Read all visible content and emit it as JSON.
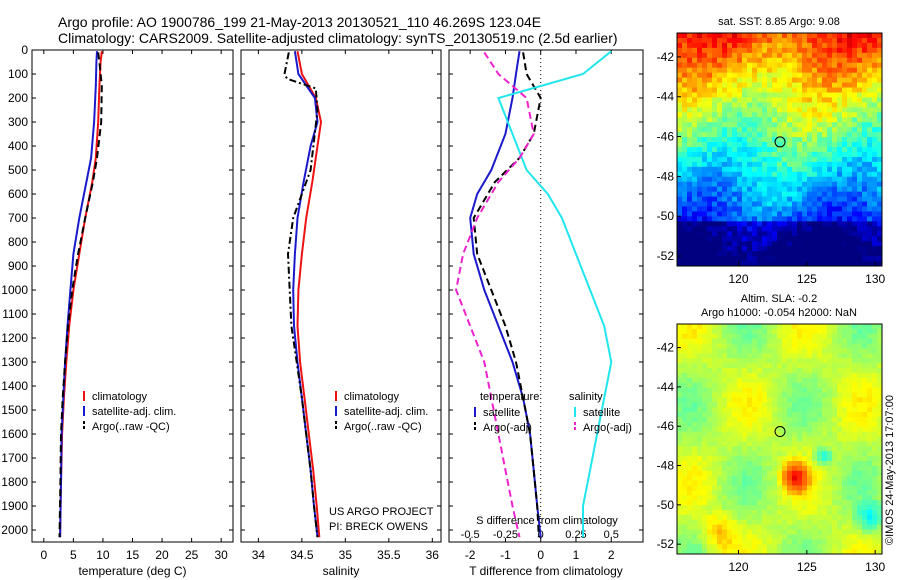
{
  "header": {
    "line1": "Argo profile: AO 1900786_199 21-May-2013 20130521_110 46.269S 123.04E",
    "line2": "Climatology: CARS2009. Satellite-adjusted climatology: synTS_20130519.nc (2.5d earlier)"
  },
  "colors": {
    "climatology": "#ee1111",
    "satellite": "#1a1acc",
    "argo": "#000000",
    "salinity_satellite": "#22e6ee",
    "salinity_argo": "#ee22cc"
  },
  "chart_data": [
    {
      "type": "line",
      "panel": "temperature",
      "xlabel": "temperature (deg C)",
      "xticks": [
        "0",
        "5",
        "10",
        "15",
        "20",
        "25",
        "30"
      ],
      "xlim": [
        -2,
        32
      ],
      "ylim": [
        2050,
        0
      ],
      "yticks": [
        "0",
        "100",
        "200",
        "300",
        "400",
        "500",
        "600",
        "700",
        "800",
        "900",
        "1000",
        "1100",
        "1200",
        "1300",
        "1400",
        "1500",
        "1600",
        "1700",
        "1800",
        "1900",
        "2000"
      ],
      "legend": [
        "climatology",
        "satellite-adj. clim.",
        "Argo(..raw -QC)"
      ],
      "series": [
        {
          "name": "climatology",
          "style": "solid",
          "color_key": "climatology",
          "x": [
            9.8,
            9.6,
            9.4,
            9.2,
            8.8,
            8.2,
            7.0,
            6.0,
            5.0,
            4.3,
            3.8,
            3.4,
            3.1,
            2.9,
            2.8,
            2.75
          ],
          "y": [
            5,
            50,
            150,
            300,
            450,
            550,
            700,
            850,
            1000,
            1150,
            1300,
            1450,
            1600,
            1800,
            1950,
            2030
          ]
        },
        {
          "name": "satellite-adj. clim.",
          "style": "solid",
          "color_key": "satellite",
          "x": [
            9.0,
            8.9,
            8.8,
            8.5,
            8.0,
            7.2,
            6.0,
            5.0,
            4.5,
            4.0,
            3.6,
            3.3,
            3.0,
            2.9,
            2.8,
            2.75
          ],
          "y": [
            5,
            50,
            150,
            300,
            450,
            550,
            700,
            850,
            1000,
            1150,
            1300,
            1450,
            1600,
            1800,
            1950,
            2030
          ]
        },
        {
          "name": "Argo(..raw -QC)",
          "style": "dash",
          "color_key": "argo",
          "x": [
            9.2,
            9.4,
            9.8,
            9.7,
            9.0,
            8.3,
            7.0,
            5.8,
            4.8,
            4.1,
            3.6,
            3.2,
            2.9,
            2.8,
            2.7,
            2.65
          ],
          "y": [
            10,
            50,
            150,
            300,
            450,
            550,
            700,
            850,
            1000,
            1150,
            1300,
            1450,
            1600,
            1800,
            1950,
            2030
          ]
        }
      ]
    },
    {
      "type": "line",
      "panel": "salinity",
      "xlabel": "salinity",
      "xticks": [
        "34",
        "34.5",
        "35",
        "35.5",
        "36"
      ],
      "xlim": [
        33.8,
        36.1
      ],
      "ylim": [
        2050,
        0
      ],
      "legend": [
        "climatology",
        "satellite-adj. clim.",
        "Argo(..raw -QC)"
      ],
      "notes": [
        "US ARGO PROJECT",
        "PI: BRECK OWENS"
      ],
      "series": [
        {
          "name": "climatology",
          "style": "solid",
          "color_key": "climatology",
          "x": [
            34.45,
            34.5,
            34.66,
            34.72,
            34.68,
            34.62,
            34.55,
            34.5,
            34.46,
            34.45,
            34.48,
            34.53,
            34.58,
            34.63,
            34.67,
            34.7
          ],
          "y": [
            5,
            100,
            200,
            300,
            400,
            550,
            700,
            850,
            1000,
            1150,
            1300,
            1450,
            1600,
            1750,
            1900,
            2030
          ]
        },
        {
          "name": "satellite-adj. clim.",
          "style": "solid",
          "color_key": "satellite",
          "x": [
            34.42,
            34.46,
            34.65,
            34.68,
            34.6,
            34.52,
            34.45,
            34.42,
            34.4,
            34.41,
            34.45,
            34.5,
            34.55,
            34.6,
            34.64,
            34.68
          ],
          "y": [
            5,
            100,
            200,
            300,
            400,
            550,
            700,
            850,
            1000,
            1150,
            1300,
            1450,
            1600,
            1750,
            1900,
            2030
          ]
        },
        {
          "name": "Argo(..raw -QC)",
          "style": "dashdot",
          "color_key": "argo",
          "x": [
            34.35,
            34.3,
            34.33,
            34.66,
            34.68,
            34.6,
            34.4,
            34.34,
            34.36,
            34.38,
            34.44,
            34.5,
            34.55,
            34.6,
            34.64,
            34.68
          ],
          "y": [
            10,
            100,
            120,
            160,
            250,
            500,
            700,
            850,
            1000,
            1150,
            1300,
            1450,
            1600,
            1750,
            1900,
            2030
          ]
        }
      ]
    },
    {
      "type": "line",
      "panel": "difference",
      "xlabel": "T difference from climatology",
      "xticks": [
        "-2",
        "-1",
        "0",
        "1",
        "2"
      ],
      "xlim": [
        -2.6,
        2.9
      ],
      "top_label": "S difference from climatology",
      "top_ticks": [
        "-0.5",
        "-0.25",
        "0",
        "0.25",
        "0.5"
      ],
      "legend_temperature": {
        "title": "temperature",
        "items": [
          "satellite",
          "Argo(-adj)"
        ]
      },
      "legend_salinity": {
        "title": "salinity",
        "items": [
          "satellite",
          "Argo(-adj)"
        ]
      },
      "ylim": [
        2050,
        0
      ],
      "series": [
        {
          "name": "satellite",
          "group": "temperature",
          "style": "solid",
          "color_key": "satellite",
          "x": [
            -0.6,
            -0.7,
            -0.8,
            -1.0,
            -1.4,
            -1.8,
            -2.0,
            -1.9,
            -1.6,
            -1.2,
            -0.8,
            -0.5,
            -0.3,
            -0.2,
            -0.1,
            0.0
          ],
          "y": [
            5,
            100,
            200,
            350,
            500,
            600,
            700,
            850,
            1000,
            1150,
            1300,
            1450,
            1600,
            1750,
            1900,
            2030
          ]
        },
        {
          "name": "Argo(-adj)",
          "group": "temperature",
          "style": "dash",
          "color_key": "argo",
          "x": [
            -0.5,
            -0.4,
            0.0,
            -0.2,
            -0.6,
            -1.3,
            -1.9,
            -1.8,
            -1.4,
            -1.0,
            -0.7,
            -0.5,
            -0.3,
            -0.2,
            -0.1,
            -0.05
          ],
          "y": [
            10,
            100,
            200,
            350,
            450,
            550,
            700,
            850,
            1000,
            1150,
            1300,
            1450,
            1600,
            1750,
            1900,
            2030
          ]
        },
        {
          "name": "satellite",
          "group": "salinity",
          "style": "solid",
          "color_key": "salinity_satellite",
          "x": [
            0.5,
            0.3,
            -0.3,
            -0.2,
            -0.1,
            0.05,
            0.15,
            0.25,
            0.35,
            0.45,
            0.5,
            0.45,
            0.4,
            0.35,
            0.3,
            0.3
          ],
          "y": [
            5,
            100,
            200,
            350,
            500,
            600,
            700,
            850,
            1000,
            1150,
            1300,
            1450,
            1600,
            1750,
            1900,
            2030
          ]
        },
        {
          "name": "Argo(-adj)",
          "group": "salinity",
          "style": "dash",
          "color_key": "salinity_argo",
          "x": [
            -0.4,
            -0.3,
            -0.1,
            -0.05,
            -0.15,
            -0.3,
            -0.45,
            -0.55,
            -0.6,
            -0.5,
            -0.4,
            -0.35,
            -0.3,
            -0.25,
            -0.2,
            -0.15
          ],
          "y": [
            10,
            100,
            200,
            350,
            450,
            550,
            700,
            850,
            1000,
            1150,
            1300,
            1450,
            1600,
            1750,
            1900,
            2030
          ]
        }
      ]
    },
    {
      "type": "heatmap",
      "panel": "sst_map",
      "title": "sat. SST: 8.85  Argo: 9.08",
      "xticks": [
        "120",
        "125",
        "130"
      ],
      "yticks": [
        "-42",
        "-44",
        "-46",
        "-48",
        "-50",
        "-52"
      ],
      "xlim": [
        115.5,
        130.5
      ],
      "ylim": [
        -52.5,
        -40.8
      ],
      "marker": {
        "lon": 123.04,
        "lat": -46.27
      }
    },
    {
      "type": "heatmap",
      "panel": "sla_map",
      "title_line1": "Altim. SLA: -0.2",
      "title_line2": "Argo h1000: -0.054 h2000: NaN",
      "xticks": [
        "120",
        "125",
        "130"
      ],
      "yticks": [
        "-42",
        "-44",
        "-46",
        "-48",
        "-50",
        "-52"
      ],
      "xlim": [
        115.5,
        130.5
      ],
      "ylim": [
        -52.5,
        -40.8
      ],
      "marker": {
        "lon": 123.04,
        "lat": -46.27
      }
    }
  ],
  "side_label": "©IMOS 24-May-2013 17:07:00"
}
